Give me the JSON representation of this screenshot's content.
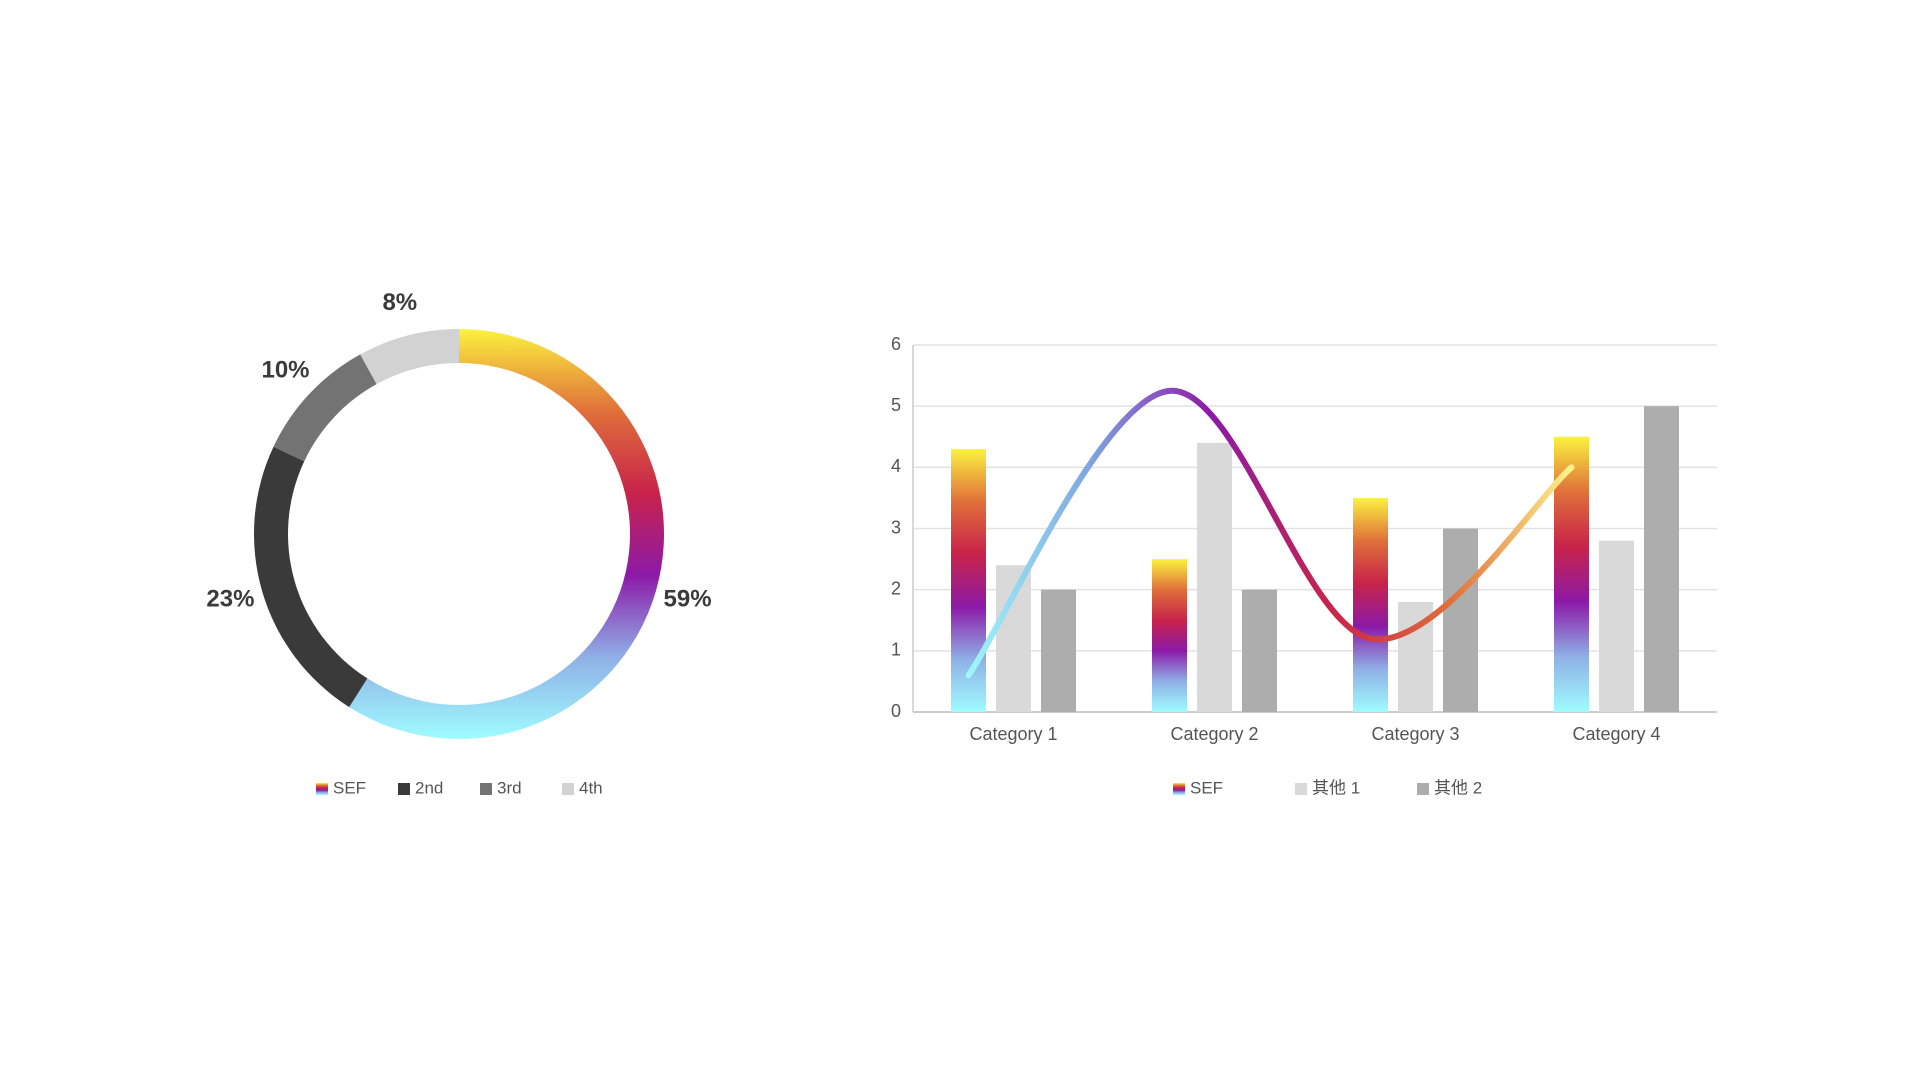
{
  "chart_data": [
    {
      "type": "donut",
      "categories": [
        "SEF",
        "2nd",
        "3rd",
        "4th"
      ],
      "values": [
        59,
        23,
        10,
        8
      ],
      "value_labels": [
        "59%",
        "23%",
        "10%",
        "8%"
      ],
      "colors": [
        [
          "#fbf23f",
          "#e0703a",
          "#c8234a",
          "#8c1aa8",
          "#8fb0e6",
          "#9ffcff"
        ],
        "#3a3a3a",
        "#737373",
        "#d2d2d2"
      ],
      "legend": "bottom"
    },
    {
      "type": "bar",
      "categories": [
        "Category 1",
        "Category 2",
        "Category 3",
        "Category 4"
      ],
      "series": [
        {
          "name": "SEF",
          "color": [
            "#fbf23f",
            "#e0703a",
            "#c8234a",
            "#8c1aa8",
            "#8fb0e6",
            "#9ffcff"
          ],
          "values": [
            4.3,
            2.5,
            3.5,
            4.5
          ]
        },
        {
          "name": "其他 1",
          "color": "#d9d9d9",
          "values": [
            2.4,
            4.4,
            1.8,
            2.8
          ]
        },
        {
          "name": "其他 2",
          "color": "#adadad",
          "values": [
            2,
            2,
            3,
            5
          ]
        }
      ],
      "line": {
        "values": [
          0.6,
          5.25,
          1.2,
          4.0
        ],
        "color": [
          "#9ff6fb",
          "#7fa6e0",
          "#8c1aa8",
          "#c8234a",
          "#e0703a",
          "#fdf38f"
        ]
      },
      "ylim": [
        0,
        6
      ],
      "yticks": [
        0,
        1,
        2,
        3,
        4,
        5,
        6
      ],
      "grid": true,
      "legend": "bottom"
    }
  ]
}
